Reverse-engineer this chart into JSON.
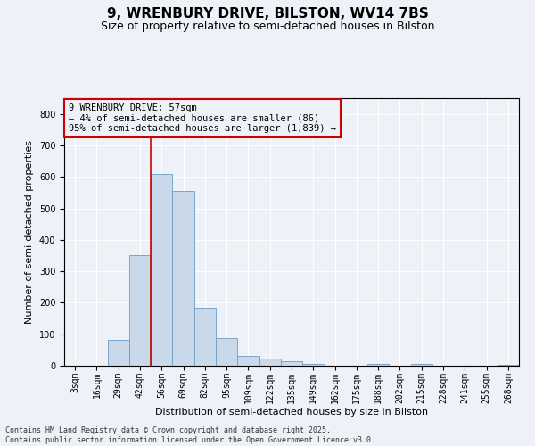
{
  "title": "9, WRENBURY DRIVE, BILSTON, WV14 7BS",
  "subtitle": "Size of property relative to semi-detached houses in Bilston",
  "xlabel": "Distribution of semi-detached houses by size in Bilston",
  "ylabel": "Number of semi-detached properties",
  "footnote1": "Contains HM Land Registry data © Crown copyright and database right 2025.",
  "footnote2": "Contains public sector information licensed under the Open Government Licence v3.0.",
  "annotation_title": "9 WRENBURY DRIVE: 57sqm",
  "annotation_line1": "← 4% of semi-detached houses are smaller (86)",
  "annotation_line2": "95% of semi-detached houses are larger (1,839) →",
  "bar_categories": [
    "3sqm",
    "16sqm",
    "29sqm",
    "42sqm",
    "56sqm",
    "69sqm",
    "82sqm",
    "95sqm",
    "109sqm",
    "122sqm",
    "135sqm",
    "149sqm",
    "162sqm",
    "175sqm",
    "188sqm",
    "202sqm",
    "215sqm",
    "228sqm",
    "241sqm",
    "255sqm",
    "268sqm"
  ],
  "bar_values": [
    1,
    0,
    82,
    350,
    608,
    555,
    183,
    89,
    30,
    22,
    14,
    6,
    0,
    0,
    5,
    0,
    5,
    0,
    0,
    0,
    2
  ],
  "bar_color": "#c9d9ea",
  "bar_edge_color": "#6a9dc8",
  "vline_color": "#cc0000",
  "vline_x_index": 4,
  "ylim": [
    0,
    850
  ],
  "yticks": [
    0,
    100,
    200,
    300,
    400,
    500,
    600,
    700,
    800
  ],
  "annotation_box_color": "#cc0000",
  "background_color": "#eef2f8",
  "grid_color": "#ffffff",
  "title_fontsize": 11,
  "subtitle_fontsize": 9,
  "axis_label_fontsize": 8,
  "tick_fontsize": 7,
  "annotation_fontsize": 7.5,
  "footnote_fontsize": 6
}
